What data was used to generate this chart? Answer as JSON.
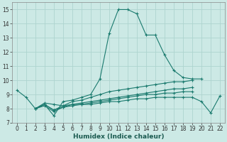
{
  "xlabel": "Humidex (Indice chaleur)",
  "xlim": [
    -0.5,
    22.5
  ],
  "ylim": [
    7,
    15.5
  ],
  "yticks": [
    7,
    8,
    9,
    10,
    11,
    12,
    13,
    14,
    15
  ],
  "xticks": [
    0,
    1,
    2,
    3,
    4,
    5,
    6,
    7,
    8,
    9,
    10,
    11,
    12,
    13,
    14,
    15,
    16,
    17,
    18,
    19,
    20,
    21,
    22
  ],
  "bg_color": "#cce9e5",
  "grid_color": "#aed4cf",
  "line_color": "#1a7a6e",
  "lines": [
    [
      9.3,
      8.8,
      8.0,
      8.3,
      7.5,
      8.5,
      8.6,
      8.8,
      9.0,
      10.1,
      13.3,
      15.0,
      15.0,
      14.7,
      13.2,
      13.2,
      11.8,
      10.7,
      10.2,
      10.1,
      10.1,
      null,
      null
    ],
    [
      null,
      null,
      8.0,
      8.4,
      8.3,
      8.2,
      8.5,
      8.6,
      8.8,
      9.0,
      9.2,
      9.3,
      9.4,
      9.5,
      9.6,
      9.7,
      9.8,
      9.9,
      9.9,
      10.0,
      null,
      null,
      null
    ],
    [
      null,
      null,
      8.0,
      8.3,
      7.9,
      8.2,
      8.3,
      8.4,
      8.5,
      8.6,
      8.7,
      8.8,
      8.9,
      9.0,
      9.1,
      9.2,
      9.3,
      9.4,
      9.4,
      9.5,
      null,
      null,
      null
    ],
    [
      null,
      null,
      8.0,
      8.3,
      7.9,
      8.1,
      8.3,
      8.3,
      8.4,
      8.5,
      8.6,
      8.7,
      8.8,
      8.9,
      9.0,
      9.0,
      9.1,
      9.1,
      9.2,
      9.2,
      null,
      null,
      null
    ],
    [
      null,
      null,
      8.0,
      8.2,
      7.8,
      8.1,
      8.2,
      8.3,
      8.3,
      8.4,
      8.5,
      8.5,
      8.6,
      8.7,
      8.7,
      8.8,
      8.8,
      8.8,
      8.8,
      8.8,
      8.5,
      7.7,
      8.9
    ]
  ]
}
